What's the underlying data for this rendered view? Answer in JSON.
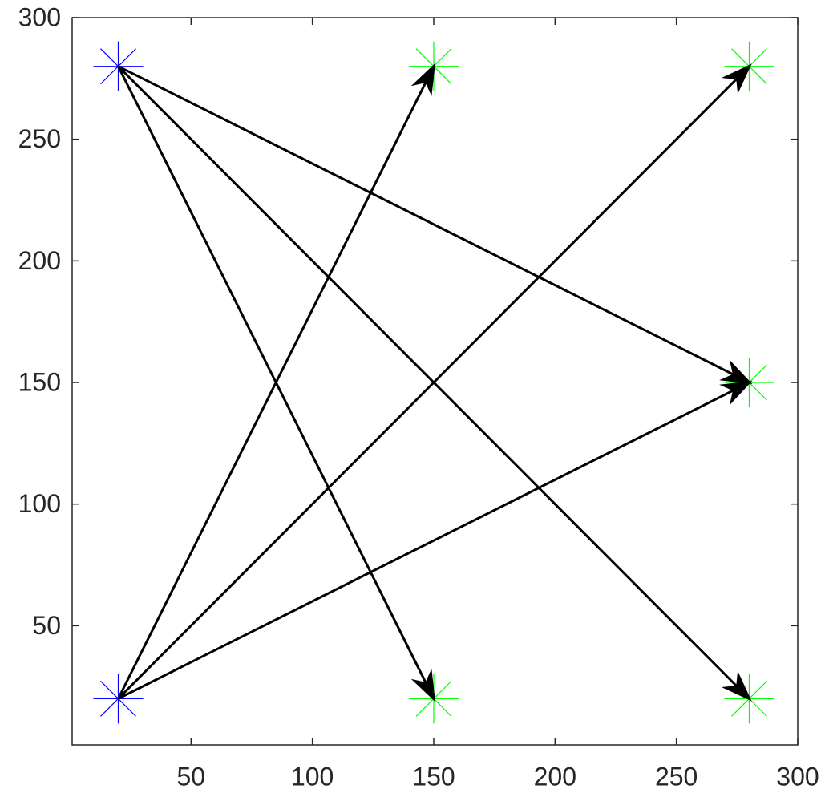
{
  "chart_data": {
    "type": "scatter",
    "xlim": [
      1,
      300
    ],
    "ylim": [
      1,
      300
    ],
    "xticks": [
      50,
      100,
      150,
      200,
      250,
      300
    ],
    "yticks": [
      50,
      100,
      150,
      200,
      250,
      300
    ],
    "series": [
      {
        "color": "#0000ff",
        "marker": "*",
        "x": [
          20,
          20
        ],
        "y": [
          280,
          20
        ]
      },
      {
        "color": "#00ff00",
        "marker": "*",
        "x": [
          150,
          280,
          280,
          150,
          280
        ],
        "y": [
          280,
          280,
          150,
          20,
          20
        ]
      }
    ],
    "arrows": {
      "color": "#000000",
      "x": [
        20,
        20,
        20,
        20,
        20,
        20
      ],
      "y": [
        280,
        280,
        280,
        20,
        20,
        20
      ],
      "x2": [
        150,
        280,
        280,
        150,
        280,
        280
      ],
      "y2": [
        20,
        20,
        150,
        280,
        280,
        150
      ]
    }
  }
}
